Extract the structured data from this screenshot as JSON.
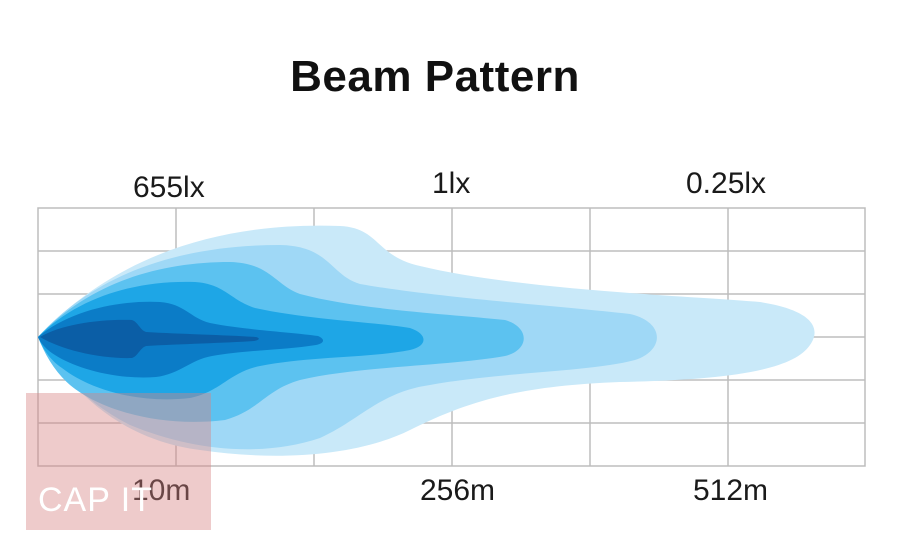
{
  "title": "Beam Pattern",
  "lux_labels": [
    "655lx",
    "1lx",
    "0.25lx"
  ],
  "distance_labels": [
    "10m",
    "256m",
    "512m"
  ],
  "watermark": "CAP IT",
  "colors": {
    "zone_1": "#c9e9f9",
    "zone_2": "#9fd8f6",
    "zone_3": "#5cc2f0",
    "zone_4": "#1ea6e6",
    "zone_5": "#0b7cc7",
    "zone_core": "#0b5ea6",
    "grid": "#bdbdbd"
  }
}
